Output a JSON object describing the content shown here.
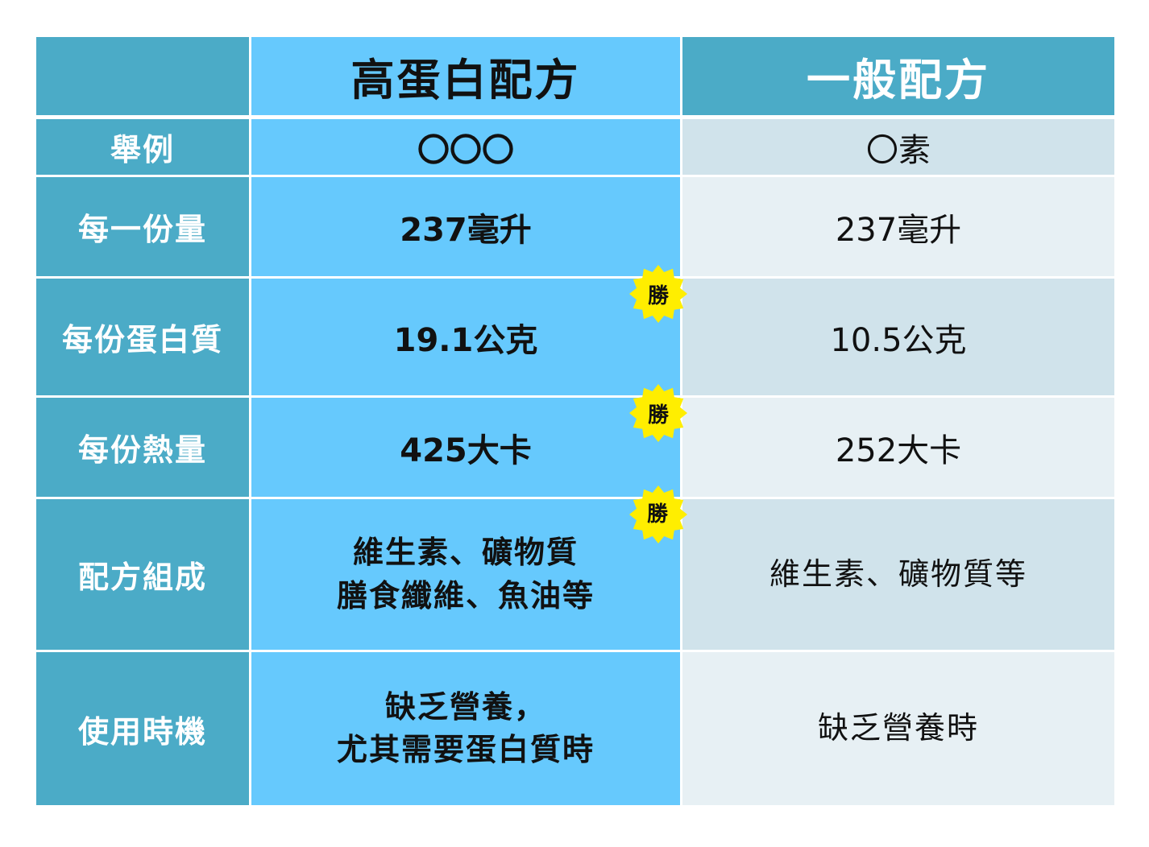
{
  "header": {
    "corner": "",
    "col_high": "高蛋白配方",
    "col_general": "一般配方"
  },
  "rows": [
    {
      "label": "舉例",
      "high": "〇〇〇",
      "general": "〇素"
    },
    {
      "label": "每一份量",
      "high": "237毫升",
      "general": "237毫升"
    },
    {
      "label": "每份蛋白質",
      "high": "19.1公克",
      "general": "10.5公克",
      "badge": "勝"
    },
    {
      "label": "每份熱量",
      "high": "425大卡",
      "general": "252大卡",
      "badge": "勝"
    },
    {
      "label": "配方組成",
      "high_lines": [
        "維生素、礦物質",
        "膳食纖維、魚油等"
      ],
      "general": "維生素、礦物質等",
      "badge": "勝"
    },
    {
      "label": "使用時機",
      "high_lines": [
        "缺乏營養，",
        "尤其需要蛋白質時"
      ],
      "general": "缺乏營養時"
    }
  ],
  "colors": {
    "label_bg": "#4babc7",
    "high_bg": "#66c9fd",
    "general_bg_a": "#d0e3eb",
    "general_bg_b": "#e7f0f4",
    "badge_bg": "#ffee00"
  }
}
